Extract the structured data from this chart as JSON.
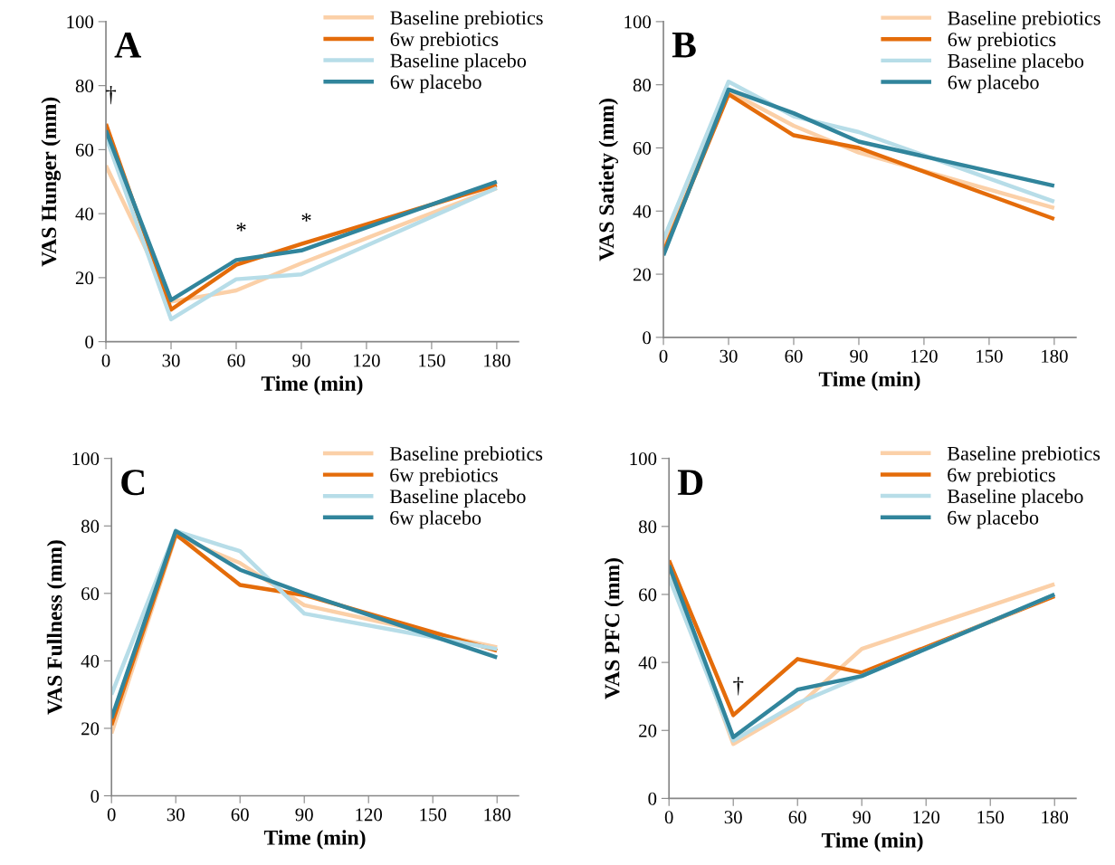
{
  "chart_data": [
    {
      "type": "line",
      "title": "A",
      "xlabel": "Time (min)",
      "ylabel": "VAS Hunger (mm)",
      "x": [
        0,
        30,
        60,
        90,
        180
      ],
      "xlim": [
        0,
        190
      ],
      "xticks": [
        0,
        30,
        60,
        90,
        120,
        150,
        180
      ],
      "ylim": [
        0,
        100
      ],
      "yticks": [
        0,
        20,
        40,
        60,
        80,
        100
      ],
      "grid": false,
      "legend": "top right",
      "series": [
        {
          "name": "Baseline prebiotics",
          "color": "#fbd0a8",
          "values": [
            55,
            12.5,
            16,
            24.5,
            48
          ]
        },
        {
          "name": "6w prebiotics",
          "color": "#e46c0a",
          "values": [
            68,
            10,
            24,
            30.5,
            49
          ]
        },
        {
          "name": "Baseline placebo",
          "color": "#b7dde8",
          "values": [
            64,
            7,
            19.5,
            21,
            48
          ]
        },
        {
          "name": "6w placebo",
          "color": "#31859c",
          "values": [
            66,
            13,
            25.5,
            28.5,
            50
          ]
        }
      ],
      "annotations": [
        {
          "text": "†",
          "x": 0,
          "y": 68
        },
        {
          "text": "*",
          "x": 60,
          "y": 25.5
        },
        {
          "text": "*",
          "x": 90,
          "y": 28.5
        }
      ]
    },
    {
      "type": "line",
      "title": "B",
      "xlabel": "Time (min)",
      "ylabel": "VAS Satiety (mm)",
      "x": [
        0,
        30,
        60,
        90,
        180
      ],
      "xlim": [
        0,
        190
      ],
      "xticks": [
        0,
        30,
        60,
        90,
        120,
        150,
        180
      ],
      "ylim": [
        0,
        100
      ],
      "yticks": [
        0,
        20,
        40,
        60,
        80,
        100
      ],
      "grid": false,
      "legend": "top right",
      "series": [
        {
          "name": "Baseline prebiotics",
          "color": "#fbd0a8",
          "values": [
            29,
            78,
            67,
            58.5,
            41
          ]
        },
        {
          "name": "6w prebiotics",
          "color": "#e46c0a",
          "values": [
            27,
            77,
            64,
            60,
            37.5
          ]
        },
        {
          "name": "Baseline placebo",
          "color": "#b7dde8",
          "values": [
            31,
            81,
            70,
            65,
            43
          ]
        },
        {
          "name": "6w placebo",
          "color": "#31859c",
          "values": [
            26,
            78.5,
            71,
            62,
            48
          ]
        }
      ]
    },
    {
      "type": "line",
      "title": "C",
      "xlabel": "Time (min)",
      "ylabel": "VAS Fullness (mm)",
      "x": [
        0,
        30,
        60,
        90,
        180
      ],
      "xlim": [
        0,
        190
      ],
      "xticks": [
        0,
        30,
        60,
        90,
        120,
        150,
        180
      ],
      "ylim": [
        0,
        100
      ],
      "yticks": [
        0,
        20,
        40,
        60,
        80,
        100
      ],
      "grid": false,
      "legend": "top right",
      "series": [
        {
          "name": "Baseline prebiotics",
          "color": "#fbd0a8",
          "values": [
            18.5,
            77,
            69,
            56.5,
            44
          ]
        },
        {
          "name": "6w prebiotics",
          "color": "#e46c0a",
          "values": [
            21,
            77.5,
            62.5,
            59.5,
            43
          ]
        },
        {
          "name": "Baseline placebo",
          "color": "#b7dde8",
          "values": [
            30,
            78.5,
            72.5,
            54,
            43.5
          ]
        },
        {
          "name": "6w placebo",
          "color": "#31859c",
          "values": [
            23,
            78.5,
            67,
            60,
            41
          ]
        }
      ]
    },
    {
      "type": "line",
      "title": "D",
      "xlabel": "Time (min)",
      "ylabel": "VAS PFC (mm)",
      "x": [
        0,
        30,
        60,
        90,
        180
      ],
      "xlim": [
        0,
        190
      ],
      "xticks": [
        0,
        30,
        60,
        90,
        120,
        150,
        180
      ],
      "ylim": [
        0,
        100
      ],
      "yticks": [
        0,
        20,
        40,
        60,
        80,
        100
      ],
      "grid": false,
      "legend": "top right",
      "series": [
        {
          "name": "Baseline prebiotics",
          "color": "#fbd0a8",
          "values": [
            68,
            16,
            27,
            44,
            63
          ]
        },
        {
          "name": "6w prebiotics",
          "color": "#e46c0a",
          "values": [
            70,
            24.5,
            41,
            37,
            59.5
          ]
        },
        {
          "name": "Baseline placebo",
          "color": "#b7dde8",
          "values": [
            65,
            17,
            28,
            36,
            60
          ]
        },
        {
          "name": "6w placebo",
          "color": "#31859c",
          "values": [
            68.5,
            18,
            32,
            36,
            60
          ]
        }
      ],
      "annotations": [
        {
          "text": "†",
          "x": 30,
          "y": 24.5
        }
      ]
    }
  ]
}
